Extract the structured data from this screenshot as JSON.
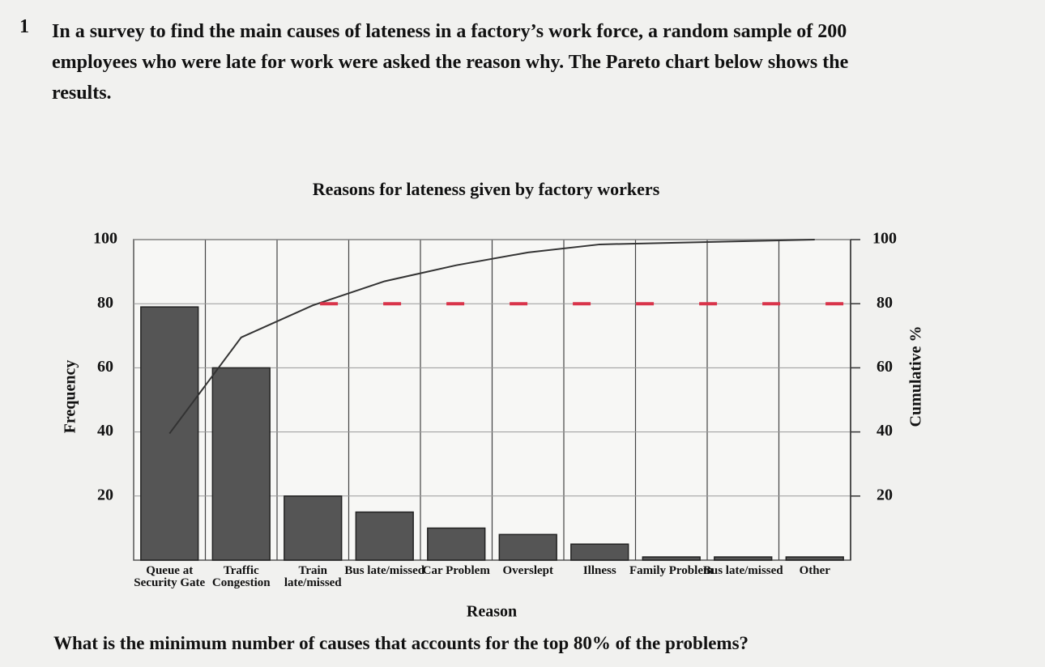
{
  "question": {
    "number": "1",
    "text": "In a survey to find the main causes of lateness in a factory’s work force, a random sample of 200 employees who were late for work were asked the reason why. The Pareto chart below shows the results.",
    "prompt": "What is the minimum number of causes that accounts for the top 80% of the problems?"
  },
  "chart_data": {
    "type": "pareto",
    "title": "Reasons for lateness given by factory workers",
    "x_label": "Reason",
    "y_label": "Frequency",
    "y2_label": "Cumulative %",
    "categories": [
      "Queue at Security Gate",
      "Traffic Congestion",
      "Train late/missed",
      "Bus late/missed",
      "Car Problem",
      "Overslept",
      "Illness",
      "Family Problem",
      "Bus late/missed",
      "Other"
    ],
    "series": [
      {
        "name": "Frequency",
        "type": "bar",
        "color": "#555555",
        "values": [
          79,
          60,
          20,
          15,
          10,
          8,
          5,
          1,
          1,
          1
        ]
      },
      {
        "name": "Cumulative %",
        "type": "line",
        "axis": "y2",
        "color": "#333333",
        "values": [
          39.5,
          69.5,
          79.5,
          87,
          92,
          96,
          98.5,
          99,
          99.5,
          100
        ]
      }
    ],
    "reference_line": {
      "value": 80,
      "axis": "y2",
      "color": "#d9344a"
    },
    "ylim": [
      0,
      100
    ],
    "yticks": [
      20,
      40,
      60,
      80,
      100
    ],
    "y2lim": [
      0,
      100
    ],
    "y2ticks": [
      20,
      40,
      60,
      80,
      100
    ],
    "grid": true
  }
}
